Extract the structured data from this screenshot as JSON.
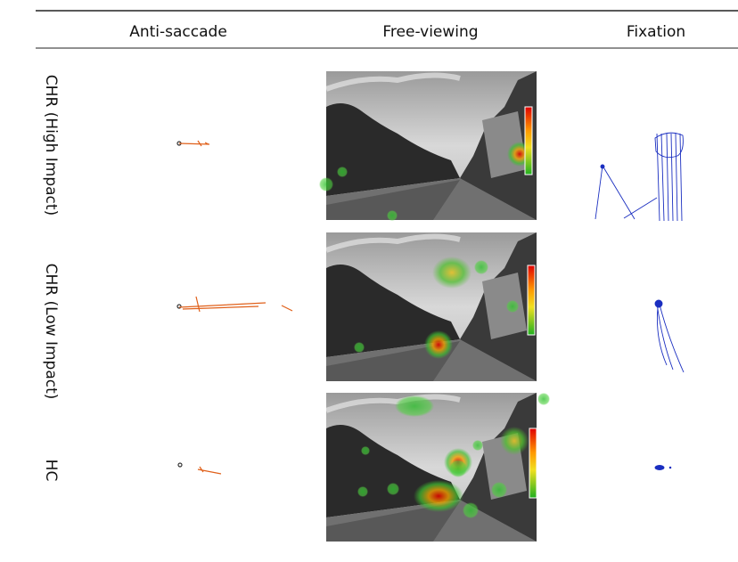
{
  "header": {
    "columns": [
      "Anti-saccade",
      "Free-viewing",
      "Fixation"
    ]
  },
  "rows": [
    {
      "label": "CHR (High Impact)"
    },
    {
      "label": "CHR (Low Impact)"
    },
    {
      "label": "HC"
    }
  ]
}
